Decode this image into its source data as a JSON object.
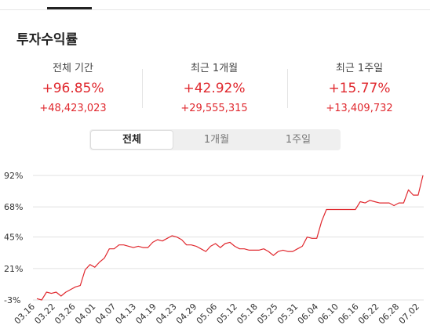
{
  "header": {
    "title": "투자수익률"
  },
  "stats": [
    {
      "label": "전체 기간",
      "percent": "+96.85%",
      "amount": "+48,423,023"
    },
    {
      "label": "최근 1개월",
      "percent": "+42.92%",
      "amount": "+29,555,315"
    },
    {
      "label": "최근 1주일",
      "percent": "+15.77%",
      "amount": "+13,409,732"
    }
  ],
  "periods": {
    "all": "전체",
    "month": "1개월",
    "week": "1주일",
    "selected": "전체"
  },
  "colors": {
    "accent": "#e0282e",
    "line": "#e0282e",
    "grid": "#e0e0e0"
  },
  "chart_data": {
    "type": "line",
    "ylim": [
      -3,
      96
    ],
    "ytick_values": [
      92,
      68,
      45,
      21,
      -3
    ],
    "ytick_labels": [
      "92%",
      "68%",
      "45%",
      "21%",
      "-3%"
    ],
    "xtick_labels": [
      "03.16",
      "03.22",
      "03.26",
      "04.01",
      "04.07",
      "04.13",
      "04.19",
      "04.23",
      "04.29",
      "05.06",
      "05.12",
      "05.18",
      "05.25",
      "05.31",
      "06.04",
      "06.10",
      "06.16",
      "06.22",
      "06.28",
      "07.02"
    ],
    "series": [
      {
        "values": [
          -2,
          -3,
          3,
          2,
          3,
          0,
          3,
          5,
          7,
          8,
          20,
          24,
          22,
          26,
          29,
          36,
          36,
          39,
          39,
          38,
          37,
          38,
          37,
          37,
          41,
          43,
          42,
          44,
          46,
          45,
          43,
          39,
          39,
          38,
          36,
          34,
          38,
          40,
          37,
          40,
          41,
          38,
          36,
          36,
          35,
          35,
          35,
          36,
          34,
          31,
          34,
          35,
          34,
          34,
          36,
          38,
          45,
          44,
          44,
          57,
          66,
          66,
          66,
          66,
          66,
          66,
          66,
          72,
          71,
          73,
          72,
          71,
          71,
          71,
          69,
          71,
          71,
          81,
          77,
          77,
          92
        ]
      }
    ]
  }
}
